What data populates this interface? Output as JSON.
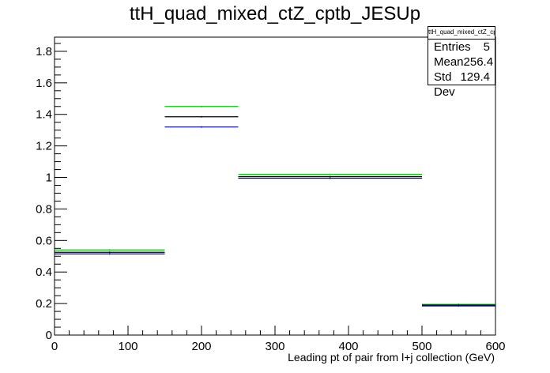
{
  "title": "ttH_quad_mixed_ctZ_cptb_JESUp",
  "stats_box": {
    "name": "ttH_quad_mixed_ctZ_cptb_JESUp",
    "rows": [
      {
        "label": "Entries",
        "value": "5"
      },
      {
        "label": "Mean",
        "value": "256.4"
      },
      {
        "label": "Std Dev",
        "value": "129.4"
      }
    ]
  },
  "chart_data": {
    "type": "histogram",
    "title": "ttH_quad_mixed_ctZ_cptb_JESUp",
    "xlabel": "Leading pt of pair from l+j collection (GeV)",
    "ylabel": "",
    "xlim": [
      0,
      600
    ],
    "ylim": [
      0,
      1.89
    ],
    "x_ticks": [
      "0",
      "100",
      "200",
      "300",
      "400",
      "500",
      "600"
    ],
    "y_ticks": [
      "0",
      "0.2",
      "0.4",
      "0.6",
      "0.8",
      "1",
      "1.2",
      "1.4",
      "1.6",
      "1.8"
    ],
    "bin_edges": [
      0,
      150,
      250,
      500,
      600
    ],
    "series": [
      {
        "color": "#00cc00",
        "values": [
          0.54,
          1.45,
          1.02,
          0.195
        ]
      },
      {
        "color": "#000000",
        "values": [
          0.525,
          1.385,
          1.005,
          0.19
        ]
      },
      {
        "color": "#0000cc",
        "values": [
          0.515,
          1.32,
          0.995,
          0.185
        ]
      }
    ]
  }
}
